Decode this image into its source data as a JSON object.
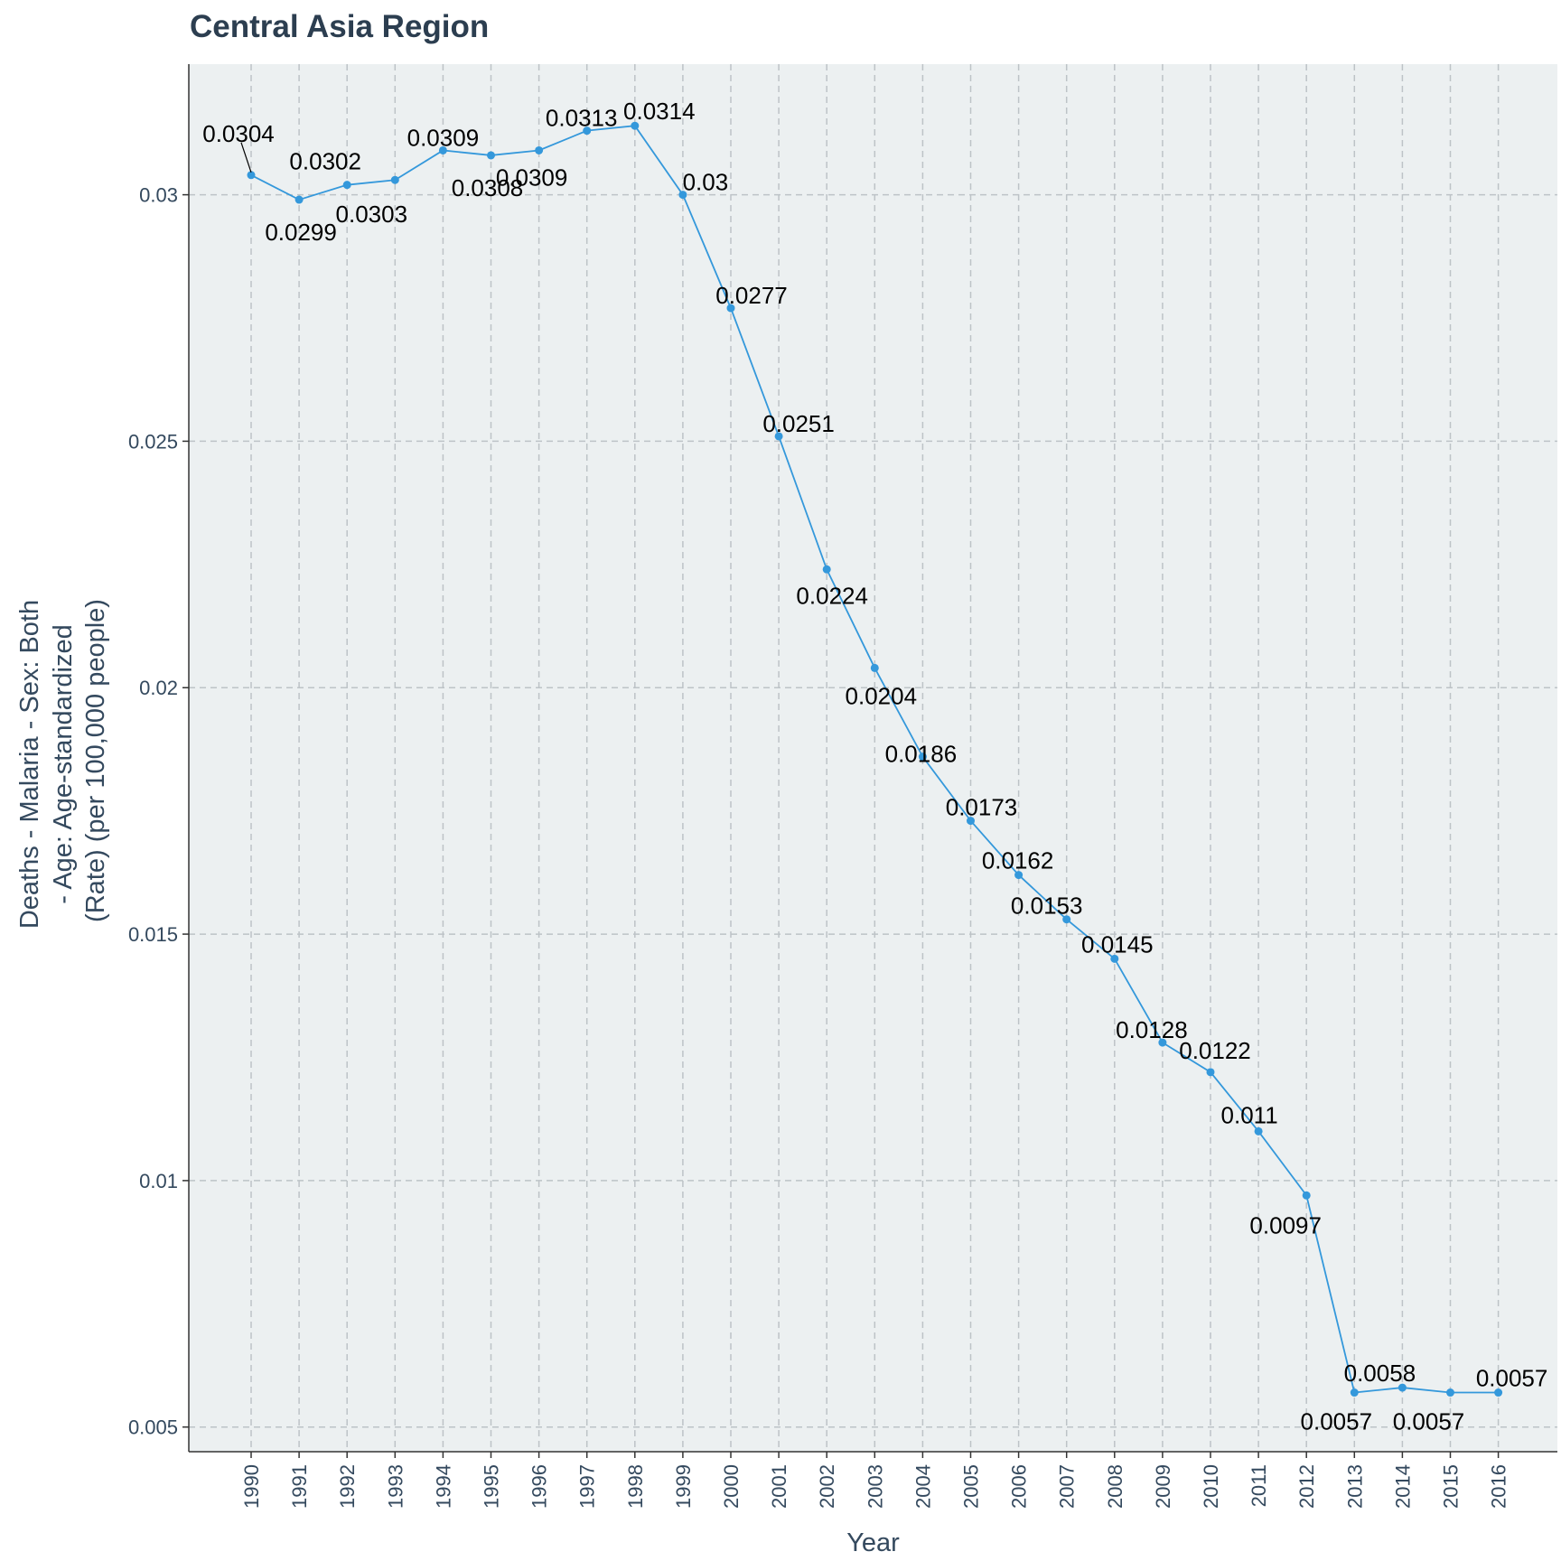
{
  "chart_data": {
    "type": "line",
    "title": "Central Asia Region",
    "xlabel": "Year",
    "ylabel_lines": [
      "Deaths - Malaria - Sex: Both",
      "- Age: Age-standardized",
      "(Rate) (per 100,000 people)"
    ],
    "x": [
      1990,
      1991,
      1992,
      1993,
      1994,
      1995,
      1996,
      1997,
      1998,
      1999,
      2000,
      2001,
      2002,
      2003,
      2004,
      2005,
      2006,
      2007,
      2008,
      2009,
      2010,
      2011,
      2012,
      2013,
      2014,
      2015,
      2016
    ],
    "series": [
      {
        "values": [
          0.0304,
          0.0299,
          0.0302,
          0.0303,
          0.0309,
          0.0308,
          0.0309,
          0.0313,
          0.0314,
          0.03,
          0.0277,
          0.0251,
          0.0224,
          0.0204,
          0.0186,
          0.0173,
          0.0162,
          0.0153,
          0.0145,
          0.0128,
          0.0122,
          0.011,
          0.0097,
          0.0057,
          0.0058,
          0.0057,
          0.0057
        ],
        "labels": [
          "0.0304",
          "0.0299",
          "0.0302",
          "0.0303",
          "0.0309",
          "0.0308",
          "0.0309",
          "0.0313",
          "0.0314",
          "0.03",
          "0.0277",
          "0.0251",
          "0.0224",
          "0.0204",
          "0.0186",
          "0.0173",
          "0.0162",
          "0.0153",
          "0.0145",
          "0.0128",
          "0.0122",
          "0.011",
          "0.0097",
          "0.0057",
          "0.0058",
          "0.0057",
          "0.0057"
        ],
        "color": "#3498db"
      }
    ],
    "yticks": [
      0.005,
      0.01,
      0.015,
      0.02,
      0.025,
      0.03
    ],
    "ytick_labels": [
      "0.005",
      "0.01",
      "0.015",
      "0.02",
      "0.025",
      "0.03"
    ],
    "ylim": [
      0.0045,
      0.03265
    ],
    "grid": true,
    "legend": "none",
    "colors": {
      "panel": "#ecf0f1",
      "grid": "#bdc3c7",
      "text": "#34495e",
      "title": "#2c3e50",
      "line": "#3498db"
    }
  }
}
